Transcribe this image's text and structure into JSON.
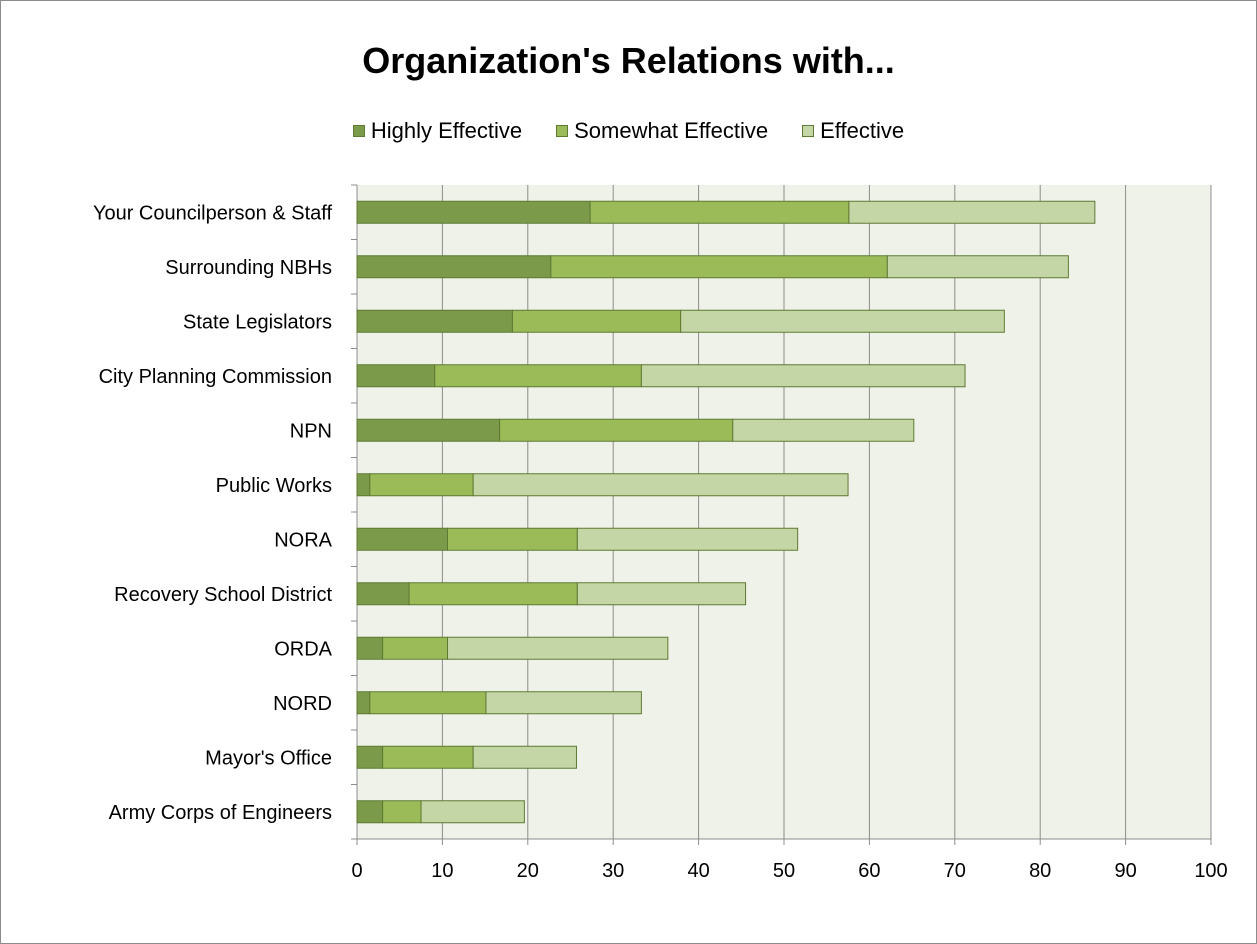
{
  "chart_data": {
    "type": "bar",
    "orientation": "horizontal",
    "stacked": true,
    "title": "Organization's Relations with...",
    "xlabel": "",
    "ylabel": "",
    "xlim": [
      0,
      100
    ],
    "xticks": [
      "0",
      "10",
      "20",
      "30",
      "40",
      "50",
      "60",
      "70",
      "80",
      "90",
      "100"
    ],
    "grid": true,
    "legend_position": "top",
    "categories": [
      "Your Councilperson & Staff",
      "Surrounding NBHs",
      "State Legislators",
      "City Planning Commission",
      "NPN",
      "Public Works",
      "NORA",
      "Recovery School District",
      "ORDA",
      "NORD",
      "Mayor's Office",
      "Army Corps of Engineers"
    ],
    "series": [
      {
        "name": "Highly Effective",
        "color": "#7b9a4a",
        "values": [
          27.3,
          22.7,
          18.2,
          9.1,
          16.7,
          1.5,
          10.6,
          6.1,
          3.0,
          1.5,
          3.0,
          3.0
        ]
      },
      {
        "name": "Somewhat Effective",
        "color": "#9bbb59",
        "values": [
          30.3,
          39.4,
          19.7,
          24.2,
          27.3,
          12.1,
          15.2,
          19.7,
          7.6,
          13.6,
          10.6,
          4.5
        ]
      },
      {
        "name": "Effective",
        "color": "#c5d6a6",
        "values": [
          28.8,
          21.2,
          37.9,
          37.9,
          21.2,
          43.9,
          25.8,
          19.7,
          25.8,
          18.2,
          12.1,
          12.1
        ]
      }
    ]
  },
  "style": {
    "plot_background": "#eff2e8",
    "gridline_color": "#8c8c8c",
    "bar_border": "#5f7a33",
    "axis_color": "#8c8c8c"
  }
}
